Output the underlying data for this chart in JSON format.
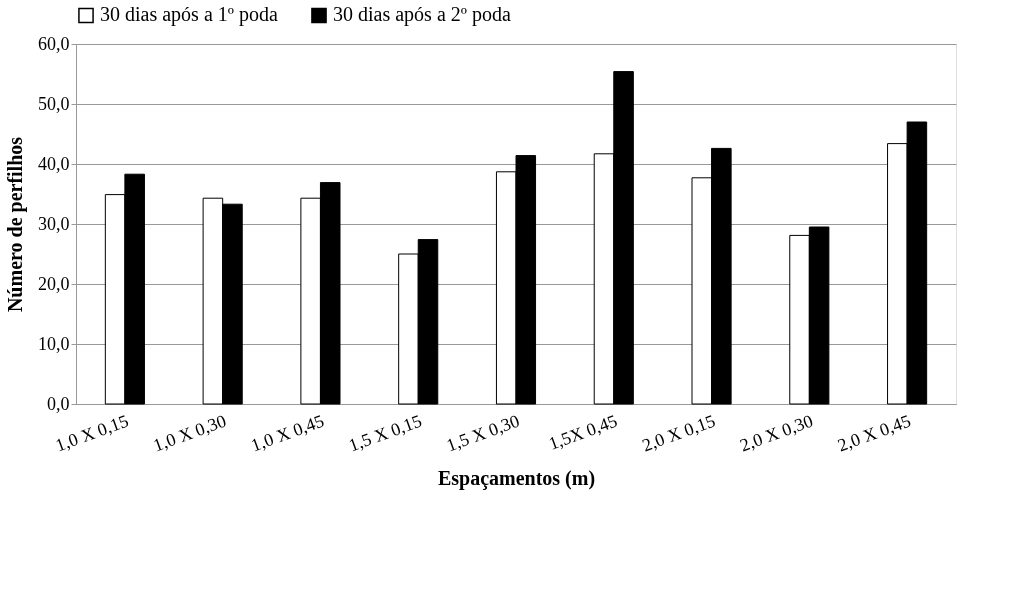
{
  "chart_data": {
    "type": "bar",
    "xlabel": "Espaçamentos (m)",
    "ylabel": "Número de perfilhos",
    "categories": [
      "1,0 X 0,15",
      "1,0 X 0,30",
      "1,0 X 0,45",
      "1,5 X 0,15",
      "1,5 X 0,30",
      "1,5X 0,45",
      "2,0 X 0,15",
      "2,0 X 0,30",
      "2,0 X 0,45"
    ],
    "series": [
      {
        "name": "30 dias após a 1º poda",
        "color": "#ffffff",
        "values": [
          34.9,
          34.3,
          34.3,
          25.0,
          38.7,
          41.7,
          37.7,
          28.1,
          43.4
        ]
      },
      {
        "name": "30 dias após a 2º poda",
        "color": "#000000",
        "values": [
          38.3,
          33.3,
          36.9,
          27.4,
          41.4,
          55.4,
          42.6,
          29.5,
          47.0
        ]
      }
    ],
    "ylim": [
      0,
      60
    ],
    "yticks": [
      {
        "value": 0,
        "label": "0,0"
      },
      {
        "value": 10,
        "label": "10,0"
      },
      {
        "value": 20,
        "label": "20,0"
      },
      {
        "value": 30,
        "label": "30,0"
      },
      {
        "value": 40,
        "label": "40,0"
      },
      {
        "value": 50,
        "label": "50,0"
      },
      {
        "value": 60,
        "label": "60,0"
      }
    ],
    "grid": "y",
    "legend": "top"
  }
}
